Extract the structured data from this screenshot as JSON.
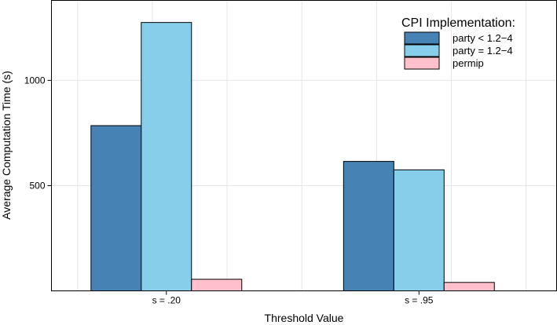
{
  "chart_data": {
    "type": "bar",
    "categories": [
      "s = .20",
      "s = .95"
    ],
    "series": [
      {
        "name": "party < 1.2−4",
        "color": "#4682b4",
        "values": [
          785,
          615
        ]
      },
      {
        "name": "party = 1.2−4",
        "color": "#87ceeb",
        "values": [
          1275,
          575
        ]
      },
      {
        "name": "permip",
        "color": "#ffc0cb",
        "values": [
          55,
          40
        ]
      }
    ],
    "xlabel": "Threshold Value",
    "ylabel": "Average Computation Time (s)",
    "ylim": [
      0,
      1380
    ],
    "yticks": [
      500,
      1000
    ],
    "grid": true,
    "legend": {
      "title": "CPI Implementation:",
      "position": "top-right"
    }
  }
}
